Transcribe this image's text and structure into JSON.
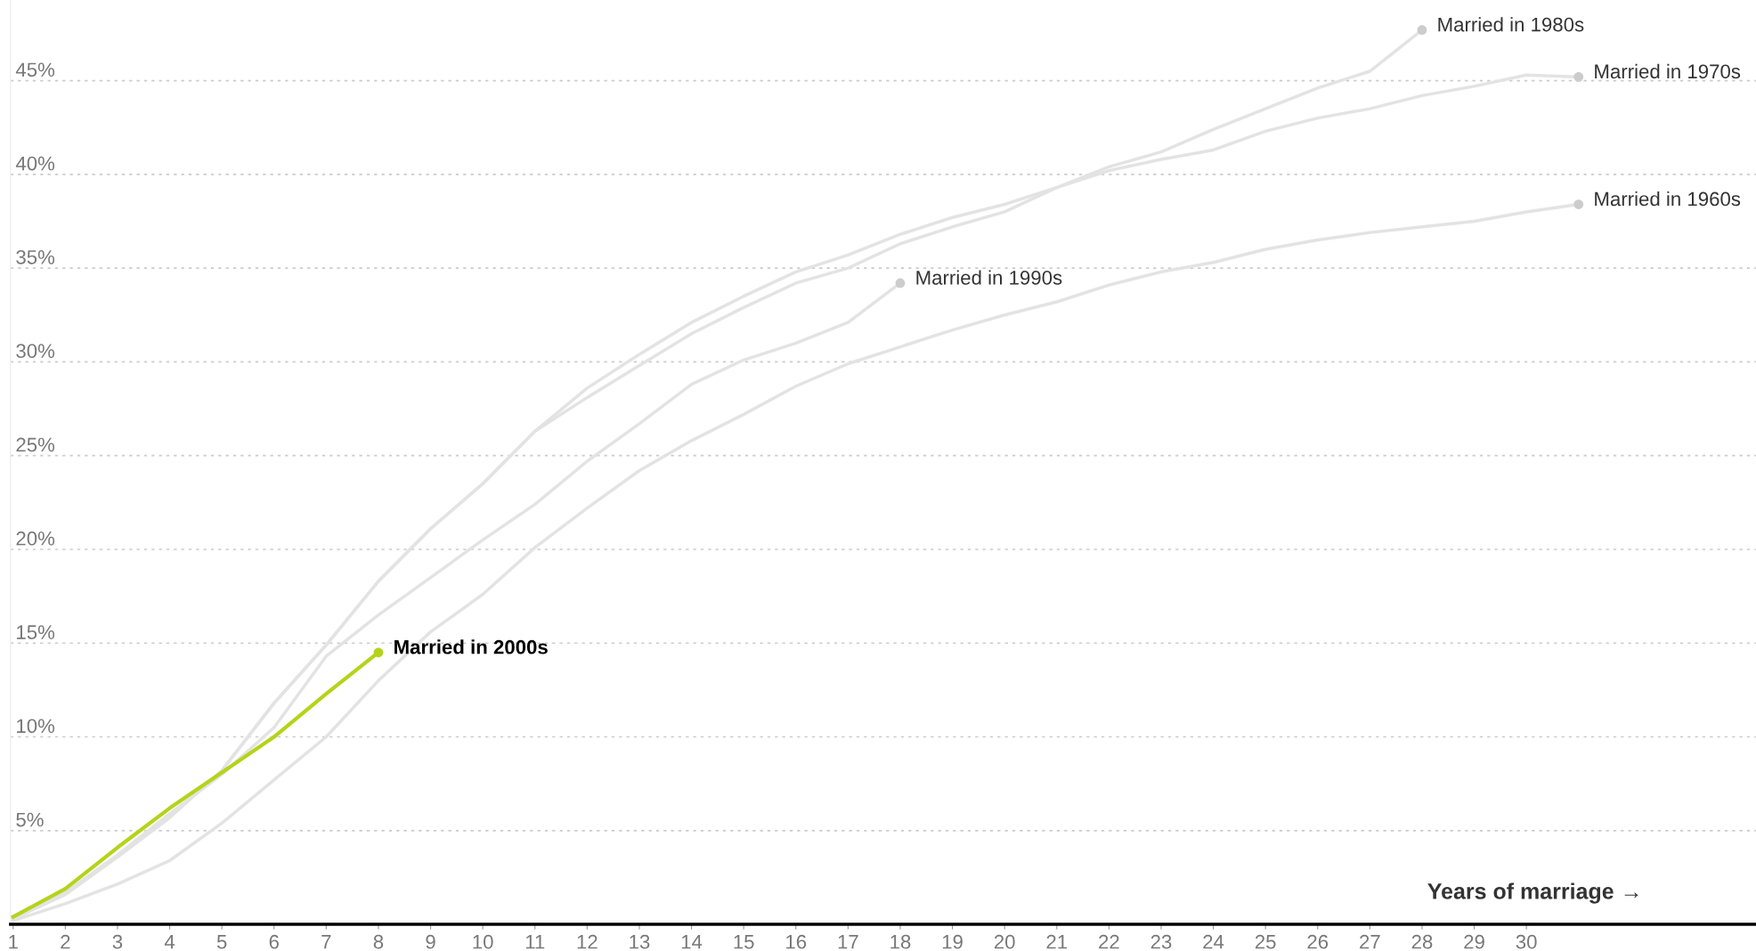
{
  "chart_data": {
    "type": "line",
    "xlabel": "Years of marriage →",
    "x": [
      1,
      2,
      3,
      4,
      5,
      6,
      7,
      8,
      9,
      10,
      11,
      12,
      13,
      14,
      15,
      16,
      17,
      18,
      19,
      20,
      21,
      22,
      23,
      24,
      25,
      26,
      27,
      28,
      29,
      30,
      31
    ],
    "series": [
      {
        "name": "Married in 1960s",
        "color": "#e3e3e3",
        "values": [
          0.2,
          1.1,
          2.15,
          3.4,
          5.4,
          7.7,
          10.0,
          13.0,
          15.6,
          17.6,
          20.1,
          22.2,
          24.2,
          25.8,
          27.2,
          28.7,
          29.9,
          30.8,
          31.7,
          32.5,
          33.2,
          34.1,
          34.8,
          35.3,
          36.0,
          36.5,
          36.9,
          37.2,
          37.5,
          38.0,
          38.4
        ]
      },
      {
        "name": "Married in 1970s",
        "color": "#e3e3e3",
        "values": [
          0.3,
          1.6,
          3.6,
          5.7,
          8.2,
          11.8,
          14.9,
          18.3,
          21.1,
          23.5,
          26.3,
          28.6,
          30.4,
          32.1,
          33.5,
          34.8,
          35.7,
          36.8,
          37.7,
          38.4,
          39.3,
          40.2,
          40.8,
          41.3,
          42.3,
          43.0,
          43.5,
          44.2,
          44.7,
          45.3,
          45.2
        ]
      },
      {
        "name": "Married in 1980s",
        "color": "#e3e3e3",
        "values": [
          0.3,
          1.6,
          3.6,
          5.7,
          8.2,
          11.8,
          14.9,
          18.3,
          21.1,
          23.5,
          26.3,
          28.1,
          29.8,
          31.5,
          32.9,
          34.2,
          35.0,
          36.3,
          37.2,
          38.0,
          39.3,
          40.4,
          41.2,
          42.4,
          43.5,
          44.6,
          45.5,
          47.7,
          null,
          null,
          null
        ]
      },
      {
        "name": "Married in 1990s",
        "color": "#e3e3e3",
        "values": [
          0.3,
          1.7,
          3.7,
          5.9,
          8.0,
          10.5,
          14.3,
          16.5,
          18.5,
          20.5,
          22.4,
          24.7,
          26.7,
          28.8,
          30.1,
          31.0,
          32.1,
          34.2,
          null,
          null,
          null,
          null,
          null,
          null,
          null,
          null,
          null,
          null,
          null,
          null,
          null
        ]
      },
      {
        "name": "Married in 2000s",
        "color": "#b5d31a",
        "values": [
          0.4,
          1.9,
          4.1,
          6.2,
          8.1,
          10.0,
          12.3,
          14.5,
          null,
          null,
          null,
          null,
          null,
          null,
          null,
          null,
          null,
          null,
          null,
          null,
          null,
          null,
          null,
          null,
          null,
          null,
          null,
          null,
          null,
          null,
          null
        ]
      }
    ],
    "xlim": [
      0.95,
      34.4
    ],
    "xticks": [
      1,
      2,
      3,
      4,
      5,
      6,
      7,
      8,
      9,
      10,
      11,
      12,
      13,
      14,
      15,
      16,
      17,
      18,
      19,
      20,
      21,
      22,
      23,
      24,
      25,
      26,
      27,
      28,
      29,
      30
    ],
    "ylim": [
      0,
      49.3
    ],
    "yticks": [
      {
        "value": 5,
        "label": "5%"
      },
      {
        "value": 10,
        "label": "10%"
      },
      {
        "value": 15,
        "label": "15%"
      },
      {
        "value": 20,
        "label": "20%"
      },
      {
        "value": 25,
        "label": "25%"
      },
      {
        "value": 30,
        "label": "30%"
      },
      {
        "value": 35,
        "label": "35%"
      },
      {
        "value": 40,
        "label": "40%"
      },
      {
        "value": 45,
        "label": "45%"
      }
    ],
    "grid": "y",
    "line_style": "solid",
    "legend": false
  }
}
